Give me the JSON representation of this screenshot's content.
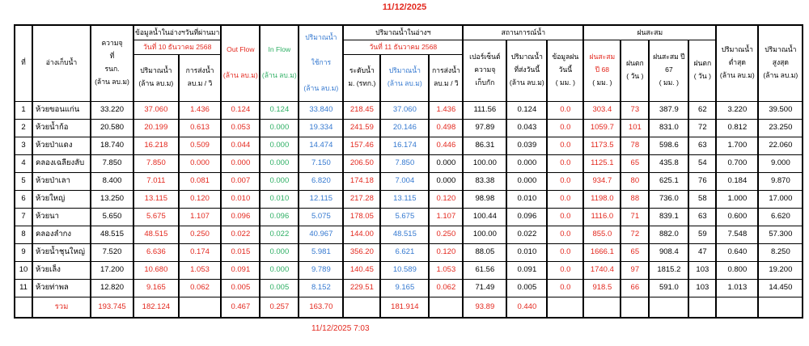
{
  "page_title": "11/12/2025",
  "footer_timestamp": "11/12/2025 7:03",
  "colors": {
    "red": "#e3281e",
    "green": "#2eaf64",
    "blue": "#3579d0",
    "black": "#000000"
  },
  "table": {
    "group_headers": {
      "prev_day": "ข้อมูลน้ำในอ่างฯวันที่ผ่านมา",
      "prev_date": "วันที่ 10 ธันวาคม 2568",
      "in_reservoir": "ปริมาณน้ำในอ่างฯ",
      "cur_date": "วันที่ 11 ธันวาคม 2568",
      "water_situation": "สถานการณ์น้ำ",
      "rain_accum": "ฝนสะสม"
    },
    "headers": {
      "no": "ที่",
      "reservoir": "อ่างเก็บน้ำ",
      "capacity": "ความจุ\nที่\nรนก.\n(ล้าน ลบ.ม)",
      "prev_volume": "ปริมาณน้ำ\n(ล้าน ลบ.ม)",
      "prev_discharge": "การส่งน้ำ\nลบ.ม / วิ",
      "out_flow": "Out Flow\n\n(ล้าน ลบ.ม)",
      "in_flow": "In Flow\n\n(ล้าน ลบ.ม)",
      "usable": "ปริมาณน้ำ\n\nใช้การ\n\n(ล้าน ลบ.ม)",
      "level": "ระดับน้ำ\nม. (รทก.)",
      "cur_volume": "ปริมาณน้ำ\n(ล้าน ลบ.ม)",
      "cur_discharge": "การส่งน้ำ\nลบ.ม / วิ",
      "percent": "เปอร์เซ็นต์\nความจุ\nเก็บกัก",
      "sent_today": "ปริมาณน้ำ\nที่ส่งวันนี้\n(ล้าน ลบ.ม)",
      "rain_today": "ข้อมูลฝน\nวันนี้\n( มม. )",
      "rain68": "ฝนสะสม\nปี 68",
      "rain68_unit": "( มม. )",
      "raindays68": "ฝนตก\n( วัน )",
      "rain67": "ฝนสะสม ปี\n67\n( มม. )",
      "raindays67": "ฝนตก\n( วัน )",
      "min": "ปริมาณน้ำ\nต่ำสุด\n(ล้าน ลบ.ม)",
      "max": "ปริมาณน้ำ\nสูงสุด\n(ล้าน ลบ.ม)"
    },
    "columns": [
      {
        "key": "no",
        "color": "black"
      },
      {
        "key": "name",
        "color": "black",
        "align": "left"
      },
      {
        "key": "capacity",
        "color": "black"
      },
      {
        "key": "prev_volume",
        "color": "red"
      },
      {
        "key": "prev_discharge",
        "color": "red"
      },
      {
        "key": "out",
        "color": "red"
      },
      {
        "key": "in",
        "color": "green"
      },
      {
        "key": "usable",
        "color": "blue"
      },
      {
        "key": "level",
        "color": "red"
      },
      {
        "key": "volume",
        "color": "blue"
      },
      {
        "key": "discharge",
        "color": "red",
        "black_if_zero": true
      },
      {
        "key": "percent",
        "color": "black"
      },
      {
        "key": "sent",
        "color": "black"
      },
      {
        "key": "rain_today",
        "color": "red"
      },
      {
        "key": "rain68",
        "color": "red"
      },
      {
        "key": "days68",
        "color": "red"
      },
      {
        "key": "rain67",
        "color": "black"
      },
      {
        "key": "days67",
        "color": "black"
      },
      {
        "key": "min",
        "color": "black"
      },
      {
        "key": "max",
        "color": "black"
      }
    ],
    "rows": [
      {
        "no": "1",
        "name": "ห้วยขอนแก่น",
        "capacity": "33.220",
        "prev_volume": "37.060",
        "prev_discharge": "1.436",
        "out": "0.124",
        "in": "0.124",
        "usable": "33.840",
        "level": "218.45",
        "volume": "37.060",
        "discharge": "1.436",
        "percent": "111.56",
        "sent": "0.124",
        "rain_today": "0.0",
        "rain68": "303.4",
        "days68": "73",
        "rain67": "387.9",
        "days67": "62",
        "min": "3.220",
        "max": "39.500"
      },
      {
        "no": "2",
        "name": "ห้วยน้ำก้อ",
        "capacity": "20.580",
        "prev_volume": "20.199",
        "prev_discharge": "0.613",
        "out": "0.053",
        "in": "0.000",
        "usable": "19.334",
        "level": "241.59",
        "volume": "20.146",
        "discharge": "0.498",
        "percent": "97.89",
        "sent": "0.043",
        "rain_today": "0.0",
        "rain68": "1059.7",
        "days68": "101",
        "rain67": "831.0",
        "days67": "72",
        "min": "0.812",
        "max": "23.250"
      },
      {
        "no": "3",
        "name": "ห้วยป่าแดง",
        "capacity": "18.740",
        "prev_volume": "16.218",
        "prev_discharge": "0.509",
        "out": "0.044",
        "in": "0.000",
        "usable": "14.474",
        "level": "157.46",
        "volume": "16.174",
        "discharge": "0.446",
        "percent": "86.31",
        "sent": "0.039",
        "rain_today": "0.0",
        "rain68": "1173.5",
        "days68": "78",
        "rain67": "598.6",
        "days67": "63",
        "min": "1.700",
        "max": "22.060"
      },
      {
        "no": "4",
        "name": "คลองเฉลียงลับ",
        "capacity": "7.850",
        "prev_volume": "7.850",
        "prev_discharge": "0.000",
        "out": "0.000",
        "in": "0.000",
        "usable": "7.150",
        "level": "206.50",
        "volume": "7.850",
        "discharge": "0.000",
        "percent": "100.00",
        "sent": "0.000",
        "rain_today": "0.0",
        "rain68": "1125.1",
        "days68": "65",
        "rain67": "435.8",
        "days67": "54",
        "min": "0.700",
        "max": "9.000"
      },
      {
        "no": "5",
        "name": "ห้วยป่าเลา",
        "capacity": "8.400",
        "prev_volume": "7.011",
        "prev_discharge": "0.081",
        "out": "0.007",
        "in": "0.000",
        "usable": "6.820",
        "level": "174.18",
        "volume": "7.004",
        "discharge": "0.000",
        "percent": "83.38",
        "sent": "0.000",
        "rain_today": "0.0",
        "rain68": "934.7",
        "days68": "80",
        "rain67": "625.1",
        "days67": "76",
        "min": "0.184",
        "max": "9.870"
      },
      {
        "no": "6",
        "name": "ห้วยใหญ่",
        "capacity": "13.250",
        "prev_volume": "13.115",
        "prev_discharge": "0.120",
        "out": "0.010",
        "in": "0.010",
        "usable": "12.115",
        "level": "217.28",
        "volume": "13.115",
        "discharge": "0.120",
        "percent": "98.98",
        "sent": "0.010",
        "rain_today": "0.0",
        "rain68": "1198.0",
        "days68": "88",
        "rain67": "736.0",
        "days67": "58",
        "min": "1.000",
        "max": "17.000"
      },
      {
        "no": "7",
        "name": "ห้วยนา",
        "capacity": "5.650",
        "prev_volume": "5.675",
        "prev_discharge": "1.107",
        "out": "0.096",
        "in": "0.096",
        "usable": "5.075",
        "level": "178.05",
        "volume": "5.675",
        "discharge": "1.107",
        "percent": "100.44",
        "sent": "0.096",
        "rain_today": "0.0",
        "rain68": "1116.0",
        "days68": "71",
        "rain67": "839.1",
        "days67": "63",
        "min": "0.600",
        "max": "6.620"
      },
      {
        "no": "8",
        "name": "คลองลำกง",
        "capacity": "48.515",
        "prev_volume": "48.515",
        "prev_discharge": "0.250",
        "out": "0.022",
        "in": "0.022",
        "usable": "40.967",
        "level": "144.00",
        "volume": "48.515",
        "discharge": "0.250",
        "percent": "100.00",
        "sent": "0.022",
        "rain_today": "0.0",
        "rain68": "855.0",
        "days68": "72",
        "rain67": "882.0",
        "days67": "59",
        "min": "7.548",
        "max": "57.300"
      },
      {
        "no": "9",
        "name": "ห้วยน้ำชุนใหญ่",
        "capacity": "7.520",
        "prev_volume": "6.636",
        "prev_discharge": "0.174",
        "out": "0.015",
        "in": "0.000",
        "usable": "5.981",
        "level": "356.20",
        "volume": "6.621",
        "discharge": "0.120",
        "percent": "88.05",
        "sent": "0.010",
        "rain_today": "0.0",
        "rain68": "1666.1",
        "days68": "65",
        "rain67": "908.4",
        "days67": "47",
        "min": "0.640",
        "max": "8.250"
      },
      {
        "no": "10",
        "name": "ห้วยเล็ง",
        "capacity": "17.200",
        "prev_volume": "10.680",
        "prev_discharge": "1.053",
        "out": "0.091",
        "in": "0.000",
        "usable": "9.789",
        "level": "140.45",
        "volume": "10.589",
        "discharge": "1.053",
        "percent": "61.56",
        "sent": "0.091",
        "rain_today": "0.0",
        "rain68": "1740.4",
        "days68": "97",
        "rain67": "1815.2",
        "days67": "103",
        "min": "0.800",
        "max": "19.200"
      },
      {
        "no": "11",
        "name": "ห้วยท่าพล",
        "capacity": "12.820",
        "prev_volume": "9.165",
        "prev_discharge": "0.062",
        "out": "0.005",
        "in": "0.005",
        "usable": "8.152",
        "level": "229.51",
        "volume": "9.165",
        "discharge": "0.062",
        "percent": "71.49",
        "sent": "0.005",
        "rain_today": "0.0",
        "rain68": "918.5",
        "days68": "66",
        "rain67": "591.0",
        "days67": "103",
        "min": "1.013",
        "max": "14.450"
      }
    ],
    "total": {
      "label": "รวม",
      "capacity": "193.745",
      "prev_volume": "182.124",
      "prev_discharge": "",
      "out": "0.467",
      "in": "0.257",
      "usable": "163.70",
      "level": "",
      "volume": "181.914",
      "discharge": "",
      "percent": "93.89",
      "sent": "0.440",
      "rain_today": "",
      "rain68": "",
      "days68": "",
      "rain67": "",
      "days67": "",
      "min": "",
      "max": ""
    }
  }
}
